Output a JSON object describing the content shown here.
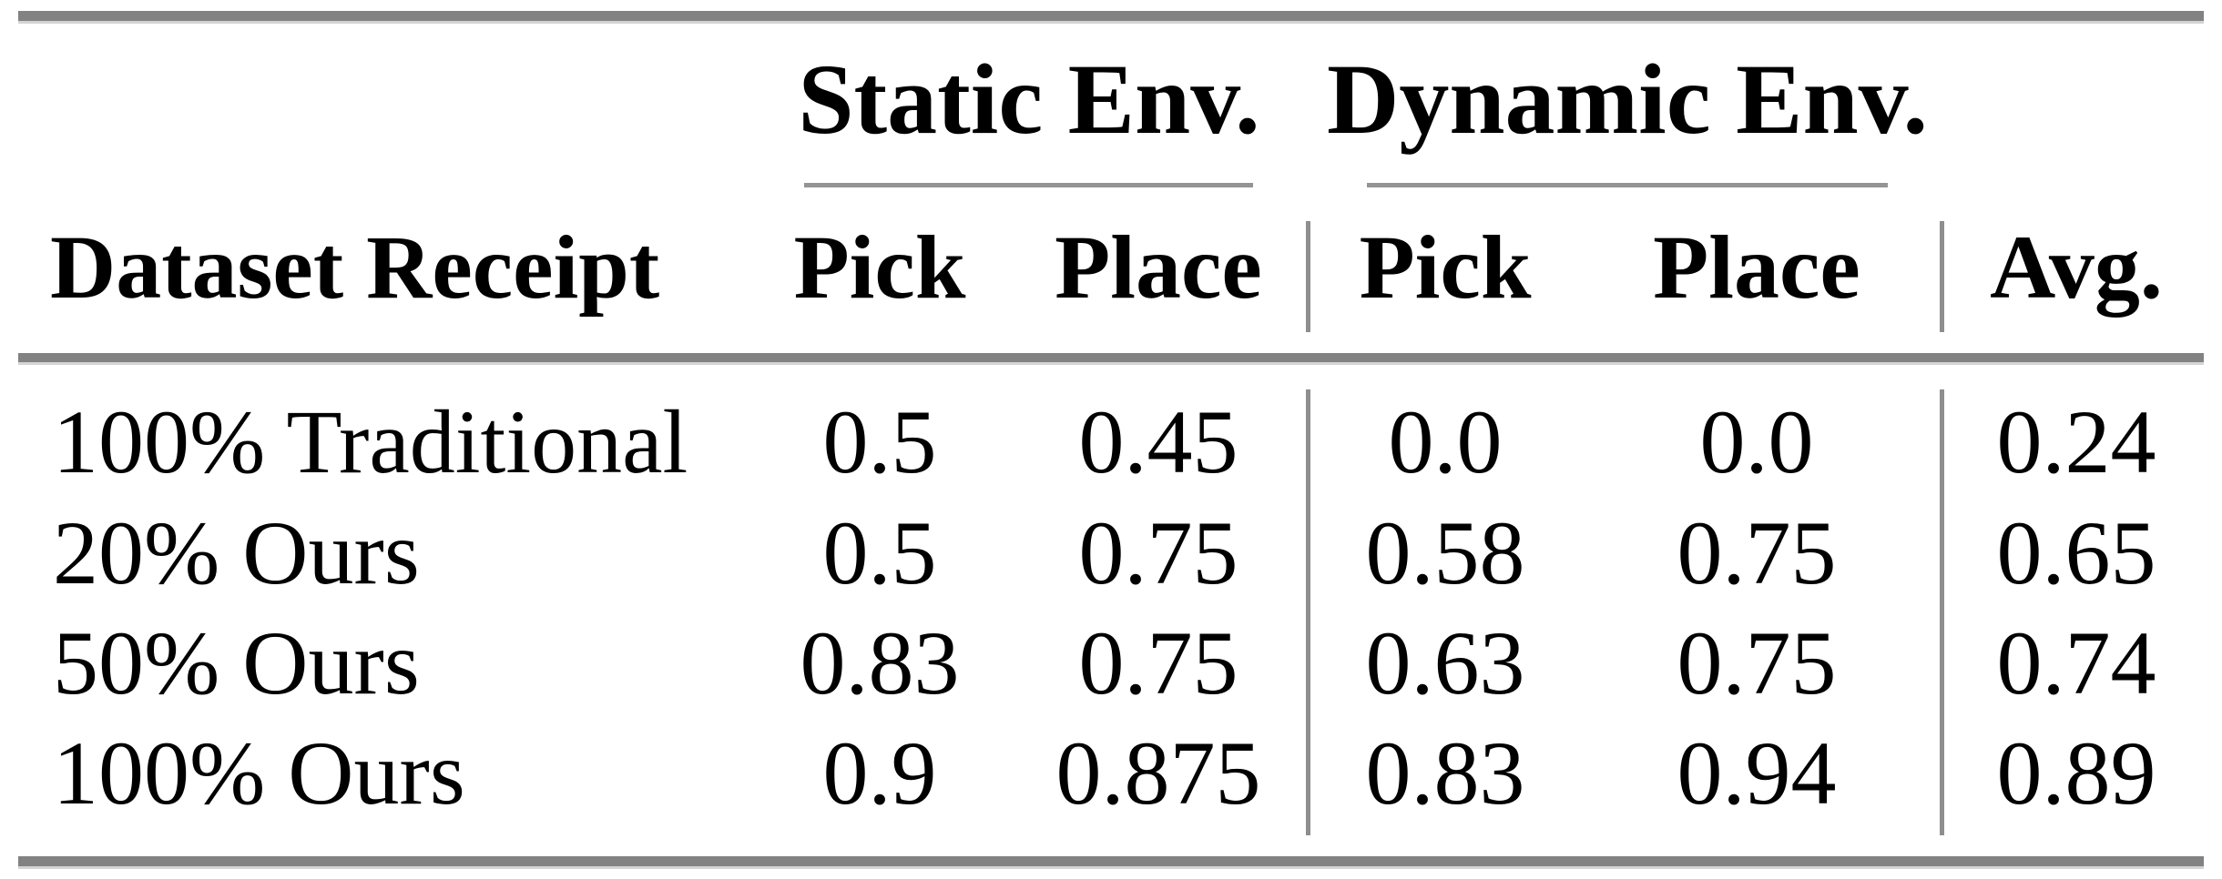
{
  "colors": {
    "background": "#ffffff",
    "text": "#000000",
    "thick_rule": "#828282",
    "thin_rule": "#949494"
  },
  "table": {
    "column_groups": {
      "static": "Static Env.",
      "dynamic": "Dynamic Env."
    },
    "columns": {
      "dataset": "Dataset Receipt",
      "static_pick": "Pick",
      "static_place": "Place",
      "dynamic_pick": "Pick",
      "dynamic_place": "Place",
      "avg": "Avg."
    },
    "rows": [
      {
        "label": "100% Traditional",
        "static_pick": "0.5",
        "static_place": "0.45",
        "dynamic_pick": "0.0",
        "dynamic_place": "0.0",
        "avg": "0.24"
      },
      {
        "label": "20% Ours",
        "static_pick": "0.5",
        "static_place": "0.75",
        "dynamic_pick": "0.58",
        "dynamic_place": "0.75",
        "avg": "0.65"
      },
      {
        "label": "50% Ours",
        "static_pick": "0.83",
        "static_place": "0.75",
        "dynamic_pick": "0.63",
        "dynamic_place": "0.75",
        "avg": "0.74"
      },
      {
        "label": "100% Ours",
        "static_pick": "0.9",
        "static_place": "0.875",
        "dynamic_pick": "0.83",
        "dynamic_place": "0.94",
        "avg": "0.89"
      }
    ]
  },
  "chart_data": {
    "type": "table",
    "column_groups": [
      "Static Env.",
      "Dynamic Env."
    ],
    "columns": [
      "Dataset Receipt",
      "Static Pick",
      "Static Place",
      "Dynamic Pick",
      "Dynamic Place",
      "Avg."
    ],
    "rows": [
      [
        "100% Traditional",
        0.5,
        0.45,
        0.0,
        0.0,
        0.24
      ],
      [
        "20% Ours",
        0.5,
        0.75,
        0.58,
        0.75,
        0.65
      ],
      [
        "50% Ours",
        0.83,
        0.75,
        0.63,
        0.75,
        0.74
      ],
      [
        "100% Ours",
        0.9,
        0.875,
        0.83,
        0.94,
        0.89
      ]
    ]
  }
}
